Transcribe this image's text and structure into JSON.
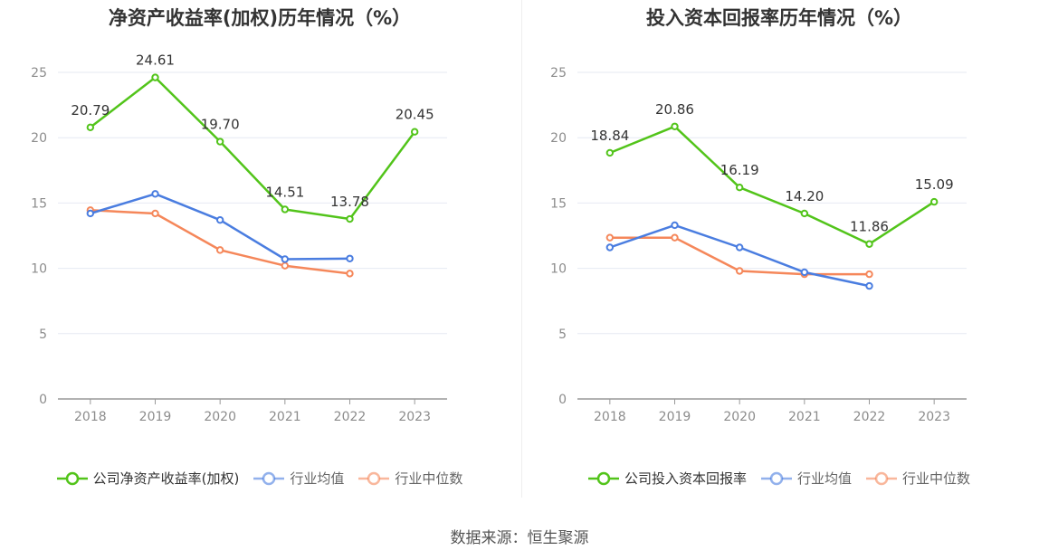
{
  "chart_data": [
    {
      "type": "line",
      "title": "净资产收益率(加权)历年情况（%）",
      "categories": [
        "2018",
        "2019",
        "2020",
        "2021",
        "2022",
        "2023"
      ],
      "ylim": [
        0,
        25
      ],
      "yticks": [
        "0",
        "5",
        "10",
        "15",
        "20",
        "25"
      ],
      "grid": true,
      "legend_position": "bottom",
      "series": [
        {
          "name": "公司净资产收益率(加权)",
          "color": "#52c41a",
          "values": [
            20.79,
            24.61,
            19.7,
            14.51,
            13.78,
            20.45
          ],
          "labels": [
            "20.79",
            "24.61",
            "19.70",
            "14.51",
            "13.78",
            "20.45"
          ]
        },
        {
          "name": "行业均值",
          "color": "#4a7de0",
          "values": [
            14.2,
            15.7,
            13.7,
            10.7,
            10.75,
            null
          ]
        },
        {
          "name": "行业中位数",
          "color": "#f5875a",
          "values": [
            14.45,
            14.2,
            11.4,
            10.2,
            9.6,
            null
          ]
        }
      ]
    },
    {
      "type": "line",
      "title": "投入资本回报率历年情况（%）",
      "categories": [
        "2018",
        "2019",
        "2020",
        "2021",
        "2022",
        "2023"
      ],
      "ylim": [
        0,
        25
      ],
      "yticks": [
        "0",
        "5",
        "10",
        "15",
        "20",
        "25"
      ],
      "grid": true,
      "legend_position": "bottom",
      "series": [
        {
          "name": "公司投入资本回报率",
          "color": "#52c41a",
          "values": [
            18.84,
            20.86,
            16.19,
            14.2,
            11.86,
            15.09
          ],
          "labels": [
            "18.84",
            "20.86",
            "16.19",
            "14.20",
            "11.86",
            "15.09"
          ]
        },
        {
          "name": "行业均值",
          "color": "#4a7de0",
          "values": [
            11.6,
            13.3,
            11.6,
            9.7,
            8.65,
            null
          ]
        },
        {
          "name": "行业中位数",
          "color": "#f5875a",
          "values": [
            12.35,
            12.35,
            9.8,
            9.55,
            9.55,
            null
          ]
        }
      ]
    }
  ],
  "source_text": "数据来源：恒生聚源"
}
